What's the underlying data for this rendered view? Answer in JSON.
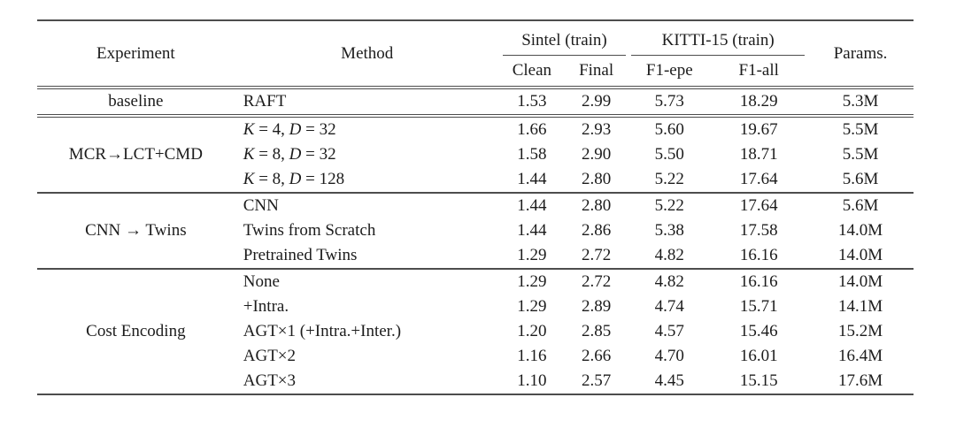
{
  "colors": {
    "background": "#ffffff",
    "text": "#1c1c1c",
    "rule": "#4d4d4d"
  },
  "table": {
    "header": {
      "experiment": "Experiment",
      "method": "Method",
      "sintel_group": "Sintel (train)",
      "kitti_group": "KITTI-15 (train)",
      "params": "Params.",
      "sintel_sub": [
        "Clean",
        "Final"
      ],
      "kitti_sub": [
        "F1-epe",
        "F1-all"
      ]
    },
    "value_column_names": [
      "Clean",
      "Final",
      "F1-epe",
      "F1-all",
      "Params."
    ],
    "sections": [
      {
        "experiment": "baseline",
        "rows": [
          {
            "method": "RAFT",
            "values": [
              "1.53",
              "2.99",
              "5.73",
              "18.29",
              "5.3M"
            ]
          }
        ]
      },
      {
        "experiment": "MCR→LCT+CMD",
        "rows": [
          {
            "method": "K = 4, D = 32",
            "values": [
              "1.66",
              "2.93",
              "5.60",
              "19.67",
              "5.5M"
            ]
          },
          {
            "method": "K = 8, D = 32",
            "values": [
              "1.58",
              "2.90",
              "5.50",
              "18.71",
              "5.5M"
            ]
          },
          {
            "method": "K = 8, D = 128",
            "values": [
              "1.44",
              "2.80",
              "5.22",
              "17.64",
              "5.6M"
            ]
          }
        ]
      },
      {
        "experiment": "CNN → Twins",
        "rows": [
          {
            "method": "CNN",
            "values": [
              "1.44",
              "2.80",
              "5.22",
              "17.64",
              "5.6M"
            ]
          },
          {
            "method": "Twins from Scratch",
            "values": [
              "1.44",
              "2.86",
              "5.38",
              "17.58",
              "14.0M"
            ]
          },
          {
            "method": "Pretrained Twins",
            "values": [
              "1.29",
              "2.72",
              "4.82",
              "16.16",
              "14.0M"
            ]
          }
        ]
      },
      {
        "experiment": "Cost Encoding",
        "rows": [
          {
            "method": "None",
            "values": [
              "1.29",
              "2.72",
              "4.82",
              "16.16",
              "14.0M"
            ]
          },
          {
            "method": "+Intra.",
            "values": [
              "1.29",
              "2.89",
              "4.74",
              "15.71",
              "14.1M"
            ]
          },
          {
            "method": "AGT×1 (+Intra.+Inter.)",
            "values": [
              "1.20",
              "2.85",
              "4.57",
              "15.46",
              "15.2M"
            ]
          },
          {
            "method": "AGT×2",
            "values": [
              "1.16",
              "2.66",
              "4.70",
              "16.01",
              "16.4M"
            ]
          },
          {
            "method": "AGT×3",
            "values": [
              "1.10",
              "2.57",
              "4.45",
              "15.15",
              "17.6M"
            ]
          }
        ]
      }
    ]
  }
}
